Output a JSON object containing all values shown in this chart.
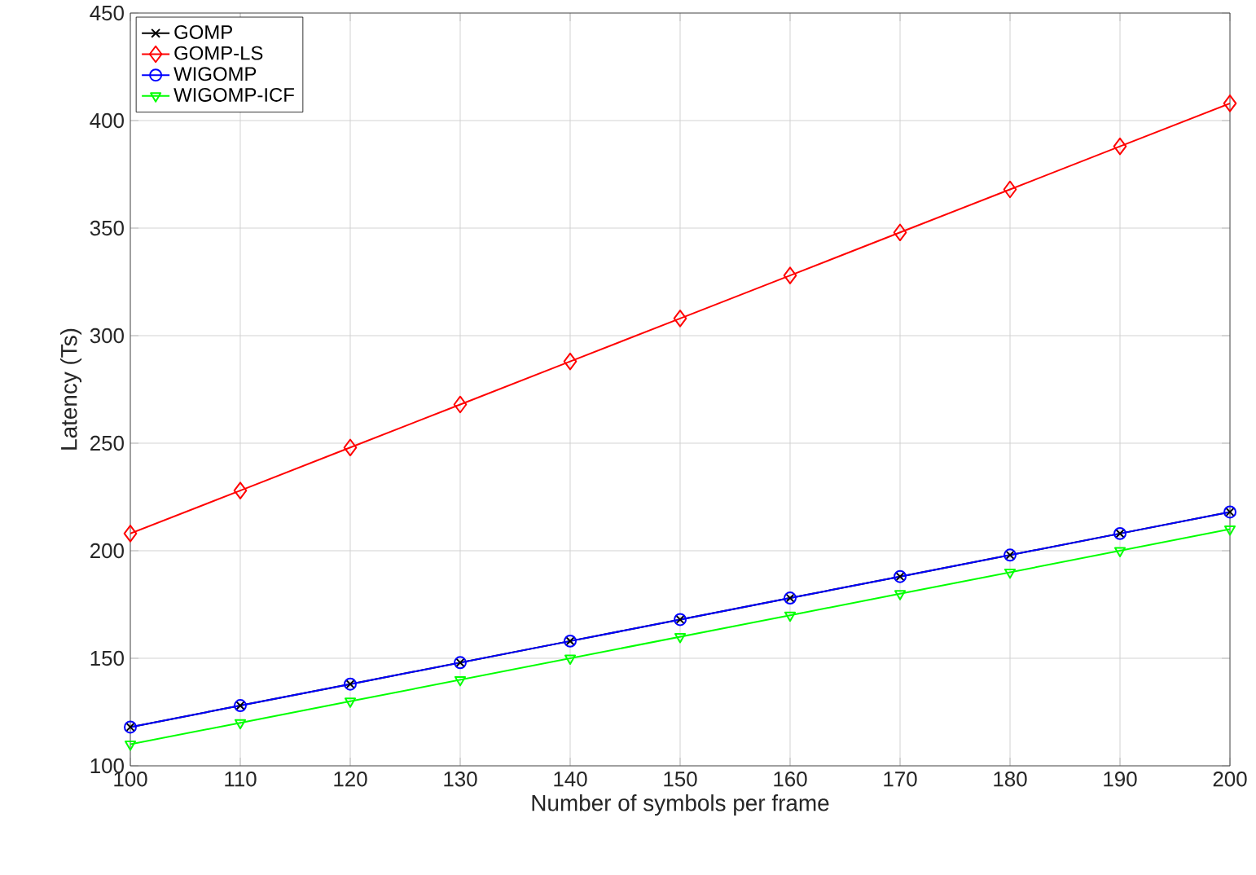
{
  "chart_data": {
    "type": "line",
    "xlabel": "Number of symbols per frame",
    "ylabel": "Latency (Ts)",
    "x": [
      100,
      110,
      120,
      130,
      140,
      150,
      160,
      170,
      180,
      190,
      200
    ],
    "series": [
      {
        "name": "GOMP",
        "color": "#000000",
        "marker": "cross",
        "values": [
          118,
          128,
          138,
          148,
          158,
          168,
          178,
          188,
          198,
          208,
          218
        ]
      },
      {
        "name": "GOMP-LS",
        "color": "#ff0000",
        "marker": "diamond",
        "values": [
          208,
          228,
          248,
          268,
          288,
          308,
          328,
          348,
          368,
          388,
          408
        ]
      },
      {
        "name": "WIGOMP",
        "color": "#0000ff",
        "marker": "circle",
        "values": [
          118,
          128,
          138,
          148,
          158,
          168,
          178,
          188,
          198,
          208,
          218
        ]
      },
      {
        "name": "WIGOMP-ICF",
        "color": "#00ff00",
        "marker": "triangle",
        "values": [
          110,
          120,
          130,
          140,
          150,
          160,
          170,
          180,
          190,
          200,
          210
        ]
      }
    ],
    "xlim": [
      100,
      200
    ],
    "ylim": [
      100,
      450
    ],
    "xticks": [
      100,
      110,
      120,
      130,
      140,
      150,
      160,
      170,
      180,
      190,
      200
    ],
    "yticks": [
      100,
      150,
      200,
      250,
      300,
      350,
      400,
      450
    ],
    "grid": true,
    "legend": "top left",
    "line_style": "solid"
  }
}
